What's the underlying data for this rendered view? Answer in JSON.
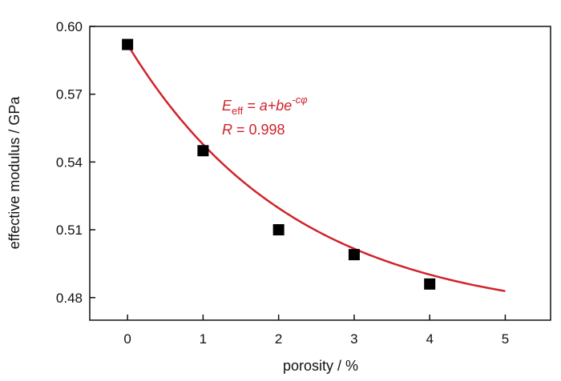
{
  "chart_data": {
    "type": "scatter",
    "title": "",
    "xlabel": "porosity / %",
    "ylabel": "effective modulus / GPa",
    "xlim": [
      -0.5,
      5.6
    ],
    "ylim": [
      0.47,
      0.6
    ],
    "xticks": [
      0,
      1,
      2,
      3,
      4,
      5
    ],
    "xtick_labels": [
      "0",
      "1",
      "2",
      "3",
      "4",
      "5"
    ],
    "yticks": [
      0.48,
      0.51,
      0.54,
      0.57,
      0.6
    ],
    "ytick_labels": [
      "0.48",
      "0.51",
      "0.54",
      "0.57",
      "0.60"
    ],
    "grid": false,
    "series": [
      {
        "marker": "square",
        "color": "#000000",
        "x": [
          0,
          1,
          2,
          3,
          4
        ],
        "y": [
          0.592,
          0.545,
          0.51,
          0.499,
          0.486
        ]
      }
    ],
    "fit": {
      "type": "exponential-decay",
      "color": "#d0242b",
      "x_range": [
        0,
        5
      ],
      "a": 0.47,
      "b": 0.122,
      "c": 0.45
    },
    "annotations": {
      "equation": {
        "E": "E",
        "eff": "eff",
        "eq": " = a+be",
        "exp": "-cφ"
      },
      "r": {
        "R": "R",
        "value": " = 0.998"
      }
    }
  }
}
